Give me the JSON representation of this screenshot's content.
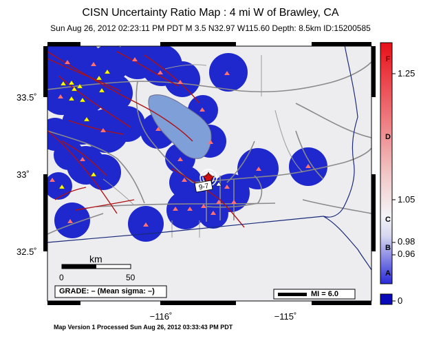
{
  "title": "CISN Uncertainty Ratio Map : 4 mi W of Brawley, CA",
  "subtitle": "Sun Aug 26, 2012 02:23:11 PM PDT   M 3.5   N32.97 W115.60   Depth: 8.5km   ID:15200585",
  "footer": "Map Version 1 Processed Sun Aug 26, 2012 03:33:43 PM PDT",
  "lat_ticks": [
    "33.5˚",
    "33˚",
    "32.5˚"
  ],
  "lon_ticks": [
    "−116˚",
    "−115˚"
  ],
  "scalebar": {
    "unit": "km",
    "tick_start": "0",
    "tick_end": "50"
  },
  "grade_box": "GRADE: – (Mean sigma: –)",
  "mi_legend": "MI = 6.0",
  "epicenter_label": "9-7",
  "colorbar": {
    "ticks": [
      "1.25",
      "1.05",
      "0.98",
      "0.96",
      "0"
    ],
    "grades": [
      "F",
      "D",
      "C",
      "B",
      "A"
    ],
    "colors": {
      "top": "#e8101a",
      "mid": "#f2f2f8",
      "low": "#1a1ad0",
      "bottom": "#0a0ab8"
    }
  },
  "colors": {
    "background_gray": "#ededf0",
    "coverage_blue": "#1e28cc",
    "salton_sea": "#7f9fd8",
    "fault_red": "#b01010",
    "road_gray": "#8a8a8a",
    "border_navy": "#1a2a7a",
    "station_triangle": "#ff7070",
    "station_yellow": "#ffff00"
  }
}
